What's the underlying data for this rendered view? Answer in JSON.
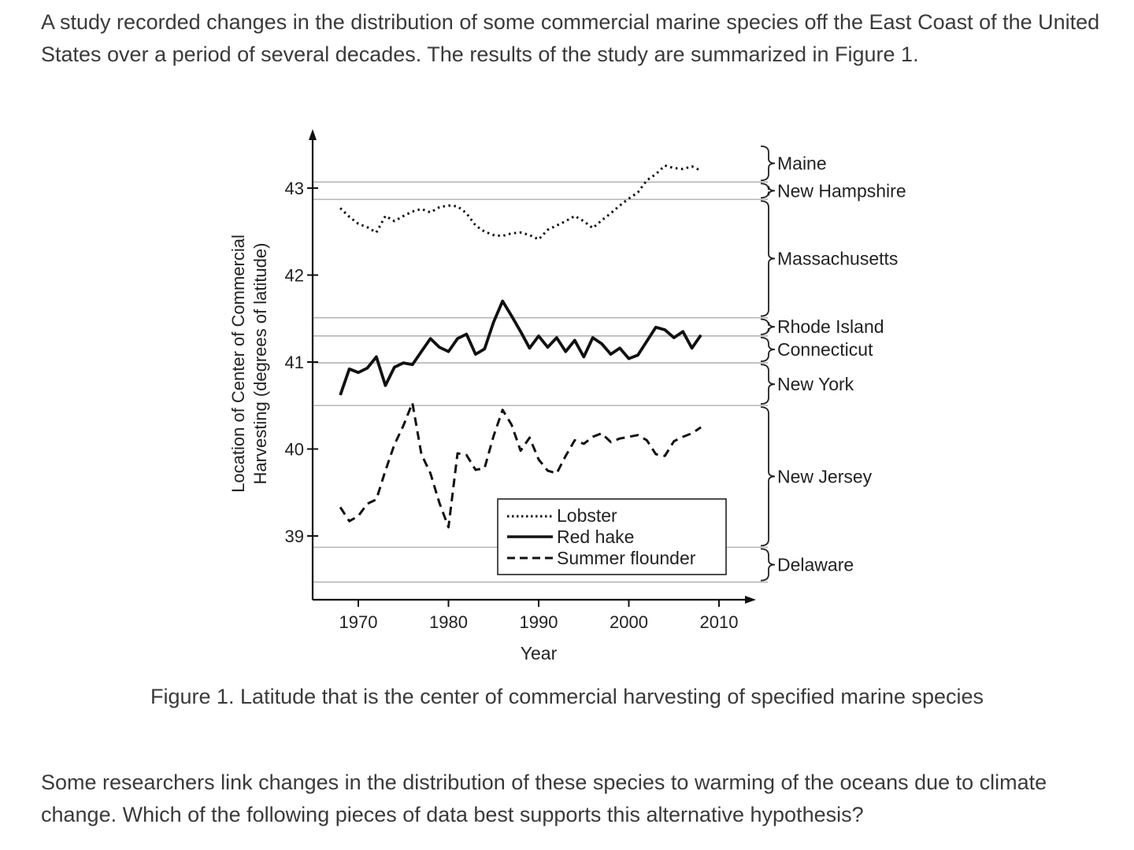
{
  "intro_text": "A study recorded changes in the distribution of some commercial marine species off the East Coast of the United States over a period of several decades. The results of the study are summarized in Figure 1.",
  "caption": "Figure 1. Latitude that is the center of commercial harvesting of specified marine species",
  "question_text": "Some researchers link changes in the distribution of these species to warming of the oceans due to climate change. Which of the following pieces of data best supports this alternative hypothesis?",
  "chart_data": {
    "type": "line",
    "xlabel": "Year",
    "ylabel_line1": "Location of Center of Commercial",
    "ylabel_line2": "Harvesting (degrees of latitude)",
    "xlim": [
      1963,
      2011
    ],
    "ylim": [
      38.35,
      43.75
    ],
    "x_ticks": [
      1970,
      1980,
      1990,
      2000,
      2010
    ],
    "y_ticks": [
      39,
      40,
      41,
      42,
      43
    ],
    "state_boundaries": [
      43.07,
      42.87,
      41.51,
      41.3,
      40.99,
      40.5,
      38.87,
      38.47
    ],
    "states": [
      {
        "name": "Maine",
        "from": 43.07,
        "to": 43.5
      },
      {
        "name": "New Hampshire",
        "from": 42.87,
        "to": 43.07
      },
      {
        "name": "Massachusetts",
        "from": 41.51,
        "to": 42.87
      },
      {
        "name": "Rhode Island",
        "from": 41.3,
        "to": 41.51
      },
      {
        "name": "Connecticut",
        "from": 40.99,
        "to": 41.3
      },
      {
        "name": "New York",
        "from": 40.5,
        "to": 40.99
      },
      {
        "name": "New Jersey",
        "from": 38.87,
        "to": 40.5
      },
      {
        "name": "Delaware",
        "from": 38.47,
        "to": 38.87
      }
    ],
    "legend_position": "bottom-right",
    "series": [
      {
        "name": "Lobster",
        "style": "dotted",
        "x": [
          1968,
          1969,
          1970,
          1971,
          1972,
          1973,
          1974,
          1975,
          1976,
          1977,
          1978,
          1979,
          1980,
          1981,
          1982,
          1983,
          1984,
          1985,
          1986,
          1987,
          1988,
          1989,
          1990,
          1991,
          1992,
          1993,
          1994,
          1995,
          1996,
          1997,
          1998,
          1999,
          2000,
          2001,
          2002,
          2003,
          2004,
          2005,
          2006,
          2007,
          2008
        ],
        "values": [
          42.77,
          42.67,
          42.59,
          42.55,
          42.49,
          42.68,
          42.62,
          42.68,
          42.73,
          42.76,
          42.72,
          42.78,
          42.8,
          42.79,
          42.71,
          42.57,
          42.5,
          42.46,
          42.45,
          42.48,
          42.49,
          42.46,
          42.41,
          42.52,
          42.57,
          42.62,
          42.68,
          42.62,
          42.54,
          42.63,
          42.71,
          42.8,
          42.88,
          42.95,
          43.09,
          43.16,
          43.26,
          43.23,
          43.22,
          43.25,
          43.2
        ]
      },
      {
        "name": "Red hake",
        "style": "solid",
        "x": [
          1968,
          1969,
          1970,
          1971,
          1972,
          1973,
          1974,
          1975,
          1976,
          1977,
          1978,
          1979,
          1980,
          1981,
          1982,
          1983,
          1984,
          1985,
          1986,
          1987,
          1988,
          1989,
          1990,
          1991,
          1992,
          1993,
          1994,
          1995,
          1996,
          1997,
          1998,
          1999,
          2000,
          2001,
          2002,
          2003,
          2004,
          2005,
          2006,
          2007,
          2008
        ],
        "values": [
          40.62,
          40.92,
          40.88,
          40.93,
          41.06,
          40.73,
          40.94,
          40.99,
          40.97,
          41.12,
          41.27,
          41.17,
          41.12,
          41.27,
          41.32,
          41.09,
          41.15,
          41.46,
          41.7,
          41.53,
          41.35,
          41.16,
          41.3,
          41.17,
          41.28,
          41.12,
          41.25,
          41.06,
          41.28,
          41.21,
          41.09,
          41.16,
          41.04,
          41.08,
          41.24,
          41.4,
          41.37,
          41.28,
          41.35,
          41.16,
          41.31
        ]
      },
      {
        "name": "Summer flounder",
        "style": "dashed",
        "x": [
          1968,
          1969,
          1970,
          1971,
          1972,
          1973,
          1974,
          1975,
          1976,
          1977,
          1978,
          1979,
          1980,
          1981,
          1982,
          1983,
          1984,
          1985,
          1986,
          1987,
          1988,
          1989,
          1990,
          1991,
          1992,
          1993,
          1994,
          1995,
          1996,
          1997,
          1998,
          1999,
          2000,
          2001,
          2002,
          2003,
          2004,
          2005,
          2006,
          2007,
          2008
        ],
        "values": [
          39.33,
          39.17,
          39.23,
          39.37,
          39.42,
          39.75,
          40.05,
          40.27,
          40.53,
          39.94,
          39.72,
          39.38,
          39.1,
          39.95,
          39.93,
          39.76,
          39.78,
          40.15,
          40.45,
          40.28,
          39.98,
          40.13,
          39.88,
          39.75,
          39.72,
          39.92,
          40.1,
          40.06,
          40.14,
          40.18,
          40.08,
          40.12,
          40.14,
          40.16,
          40.1,
          39.94,
          39.92,
          40.09,
          40.14,
          40.18,
          40.25
        ]
      }
    ]
  }
}
